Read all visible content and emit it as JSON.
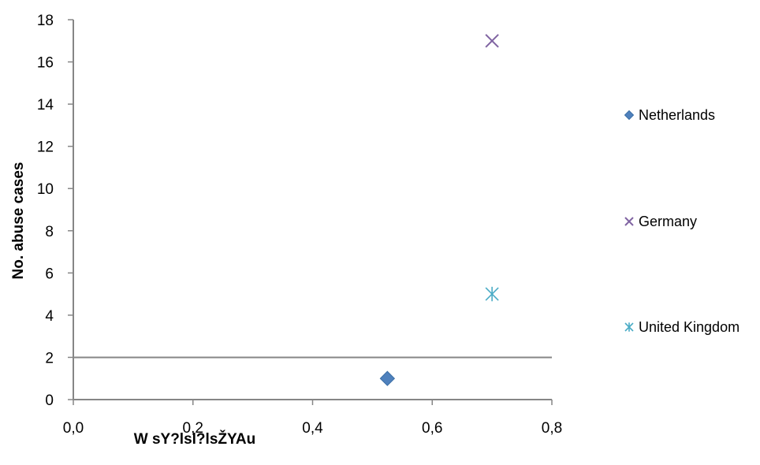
{
  "chart_data": {
    "type": "scatter",
    "title": "",
    "xlabel": "W sY?lsl?lsŽYAu",
    "ylabel": "No. abuse cases",
    "xlim": [
      0,
      0.8
    ],
    "ylim": [
      0,
      18
    ],
    "x_ticks": [
      "0,0",
      "0,2",
      "0,4",
      "0,6",
      "0,8"
    ],
    "y_ticks": [
      "0",
      "2",
      "4",
      "6",
      "8",
      "10",
      "12",
      "14",
      "16",
      "18"
    ],
    "threshold_line_y": 2,
    "grid": false,
    "legend_position": "right",
    "series": [
      {
        "name": "Netherlands",
        "marker": "diamond",
        "color": "#4f81bd",
        "points": [
          {
            "x": 0.525,
            "y": 1
          }
        ]
      },
      {
        "name": "Germany",
        "marker": "x",
        "color": "#8064a2",
        "points": [
          {
            "x": 0.7,
            "y": 17
          }
        ]
      },
      {
        "name": "United Kingdom",
        "marker": "star",
        "color": "#4bacc6",
        "points": [
          {
            "x": 0.7,
            "y": 5
          }
        ]
      }
    ]
  }
}
